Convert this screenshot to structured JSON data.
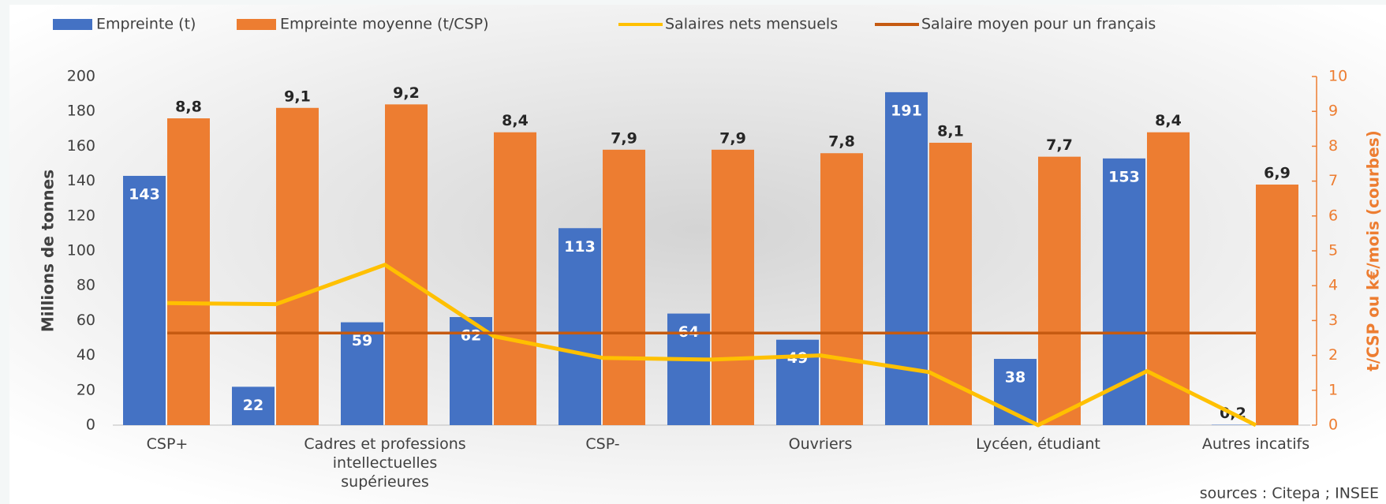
{
  "chart_data": {
    "type": "bar",
    "categories": [
      "CSP+",
      null,
      "Cadres et professions intellectuelles supérieures",
      null,
      "CSP-",
      null,
      "Ouvriers",
      null,
      "Lycéen, étudiant",
      null,
      "Autres incatifs"
    ],
    "series": [
      {
        "name": "Empreinte (t)",
        "type": "bar",
        "color": "#4472c4",
        "axis": "y",
        "values": [
          143,
          22,
          59,
          62,
          113,
          64,
          49,
          191,
          38,
          153,
          0.2
        ],
        "value_labels": [
          "143",
          "22",
          "59",
          "62",
          "113",
          "64",
          "49",
          "191",
          "38",
          "153",
          "0,2"
        ]
      },
      {
        "name": "Empreinte moyenne (t/CSP)",
        "type": "bar",
        "color": "#ed7d31",
        "axis": "y2",
        "values": [
          8.8,
          9.1,
          9.2,
          8.4,
          7.9,
          7.9,
          7.8,
          8.1,
          7.7,
          8.4,
          6.9
        ],
        "value_labels": [
          "8,8",
          "9,1",
          "9,2",
          "8,4",
          "7,9",
          "7,9",
          "7,8",
          "8,1",
          "7,7",
          "8,4",
          "6,9"
        ]
      },
      {
        "name": "Salaires nets mensuels",
        "type": "line",
        "color": "#ffc000",
        "axis": "y2",
        "values": [
          3.5,
          3.47,
          4.6,
          2.55,
          1.93,
          1.88,
          2.0,
          1.52,
          0,
          1.55,
          0
        ]
      },
      {
        "name": "Salaire moyen pour un français",
        "type": "line",
        "color": "#c55a11",
        "axis": "y2",
        "values": [
          2.64,
          2.64,
          2.64,
          2.64,
          2.64,
          2.64,
          2.64,
          2.64,
          2.64,
          2.64,
          2.64
        ]
      }
    ],
    "ylabel": "Millions de tonnes",
    "y2label": "t/CSP ou k€/mois (courbes)",
    "ylim": [
      0,
      200
    ],
    "yticks": [
      0,
      20,
      40,
      60,
      80,
      100,
      120,
      140,
      160,
      180,
      200
    ],
    "y2lim": [
      0,
      10
    ],
    "y2ticks": [
      0,
      1,
      2,
      3,
      4,
      5,
      6,
      7,
      8,
      9,
      10
    ],
    "source": "sources : Citepa ; INSEE"
  }
}
